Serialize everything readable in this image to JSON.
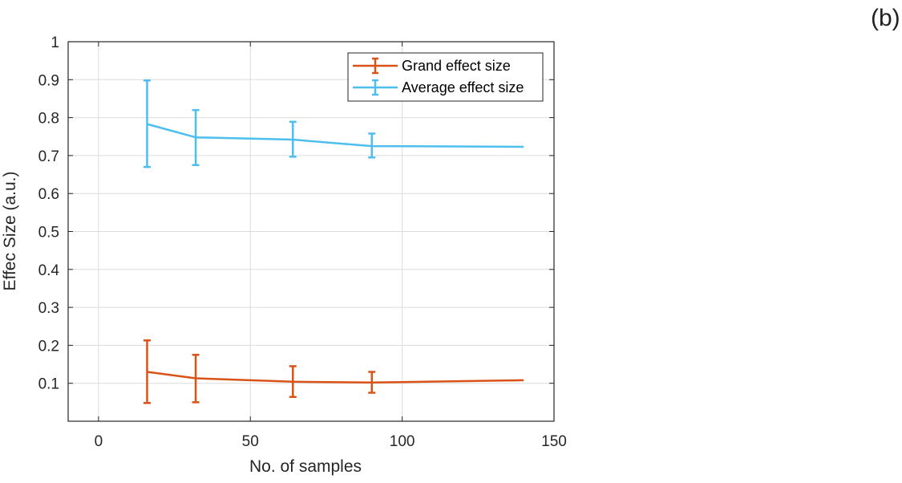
{
  "figure": {
    "panel_label": "(b)"
  },
  "chart_data": {
    "type": "line",
    "title": "",
    "xlabel": "No. of samples",
    "ylabel": "Effec Size (a.u.)",
    "xlim": [
      -10,
      150
    ],
    "ylim": [
      0,
      1
    ],
    "xticks": [
      0,
      50,
      100,
      150
    ],
    "xtick_labels": [
      "0",
      "50",
      "100",
      "150"
    ],
    "yticks": [
      0.1,
      0.2,
      0.3,
      0.4,
      0.5,
      0.6,
      0.7,
      0.8,
      0.9,
      1
    ],
    "ytick_labels": [
      "0.1",
      "0.2",
      "0.3",
      "0.4",
      "0.5",
      "0.6",
      "0.7",
      "0.8",
      "0.9",
      "1"
    ],
    "grid": true,
    "legend_position": "top-right",
    "series": [
      {
        "name": "Grand effect size",
        "color": "#D95319",
        "x": [
          16,
          32,
          64,
          90,
          140
        ],
        "y": [
          0.13,
          0.113,
          0.104,
          0.102,
          0.108
        ],
        "err_low": [
          0.048,
          0.05,
          0.064,
          0.075,
          null
        ],
        "err_high": [
          0.213,
          0.175,
          0.145,
          0.13,
          null
        ]
      },
      {
        "name": "Average effect size",
        "color": "#4DBEEE",
        "x": [
          16,
          32,
          64,
          90,
          140
        ],
        "y": [
          0.783,
          0.748,
          0.742,
          0.725,
          0.723
        ],
        "err_low": [
          0.67,
          0.675,
          0.697,
          0.695,
          null
        ],
        "err_high": [
          0.898,
          0.82,
          0.789,
          0.758,
          null
        ]
      }
    ]
  }
}
